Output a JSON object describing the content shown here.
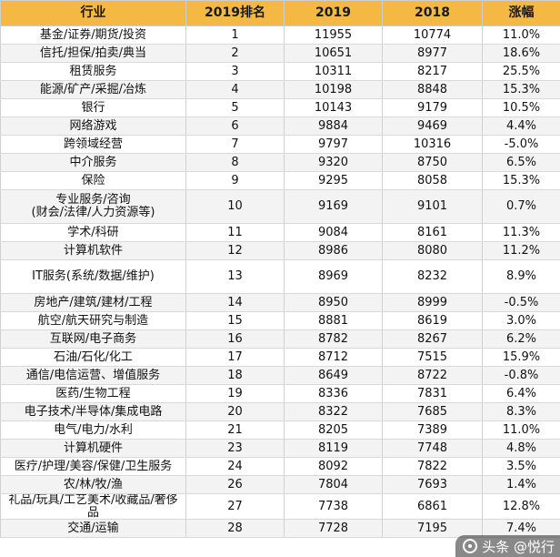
{
  "table": {
    "headers": [
      "行业",
      "2019排名",
      "2019",
      "2018",
      "涨幅"
    ],
    "rows": [
      [
        "基金/证券/期货/投资",
        "1",
        "11955",
        "10774",
        "11.0%"
      ],
      [
        "信托/担保/拍卖/典当",
        "2",
        "10651",
        "8977",
        "18.6%"
      ],
      [
        "租赁服务",
        "3",
        "10311",
        "8217",
        "25.5%"
      ],
      [
        "能源/矿产/采掘/冶炼",
        "4",
        "10198",
        "8848",
        "15.3%"
      ],
      [
        "银行",
        "5",
        "10143",
        "9179",
        "10.5%"
      ],
      [
        "网络游戏",
        "6",
        "9884",
        "9469",
        "4.4%"
      ],
      [
        "跨领域经营",
        "7",
        "9797",
        "10316",
        "-5.0%"
      ],
      [
        "中介服务",
        "8",
        "9320",
        "8750",
        "6.5%"
      ],
      [
        "保险",
        "9",
        "9295",
        "8058",
        "15.3%"
      ],
      [
        "专业服务/咨询\n(财会/法律/人力资源等)",
        "10",
        "9169",
        "9101",
        "0.7%"
      ],
      [
        "学术/科研",
        "11",
        "9084",
        "8161",
        "11.3%"
      ],
      [
        "计算机软件",
        "12",
        "8986",
        "8080",
        "11.2%"
      ],
      [
        "IT服务(系统/数据/维护)",
        "13",
        "8969",
        "8232",
        "8.9%"
      ],
      [
        "房地产/建筑/建材/工程",
        "14",
        "8950",
        "8999",
        "-0.5%"
      ],
      [
        "航空/航天研究与制造",
        "15",
        "8881",
        "8619",
        "3.0%"
      ],
      [
        "互联网/电子商务",
        "16",
        "8782",
        "8267",
        "6.2%"
      ],
      [
        "石油/石化/化工",
        "17",
        "8712",
        "7515",
        "15.9%"
      ],
      [
        "通信/电信运营、增值服务",
        "18",
        "8649",
        "8722",
        "-0.8%"
      ],
      [
        "医药/生物工程",
        "19",
        "8336",
        "7831",
        "6.4%"
      ],
      [
        "电子技术/半导体/集成电路",
        "20",
        "8322",
        "7685",
        "8.3%"
      ],
      [
        "电气/电力/水利",
        "21",
        "8205",
        "7389",
        "11.0%"
      ],
      [
        "计算机硬件",
        "23",
        "8119",
        "7748",
        "4.8%"
      ],
      [
        "医疗/护理/美容/保健/卫生服务",
        "24",
        "8092",
        "7822",
        "3.5%"
      ],
      [
        "农/林/牧/渔",
        "26",
        "7804",
        "7693",
        "1.4%"
      ],
      [
        "礼品/玩具/工艺美术/收藏品/奢侈品",
        "27",
        "7738",
        "6861",
        "12.8%"
      ],
      [
        "交通/运输",
        "28",
        "7728",
        "7195",
        "7.4%"
      ]
    ]
  },
  "watermark": {
    "text": "头条 @悦行"
  },
  "colors": {
    "header_bg": "#f4b942",
    "stripe_bg": "#f3f3f3"
  }
}
